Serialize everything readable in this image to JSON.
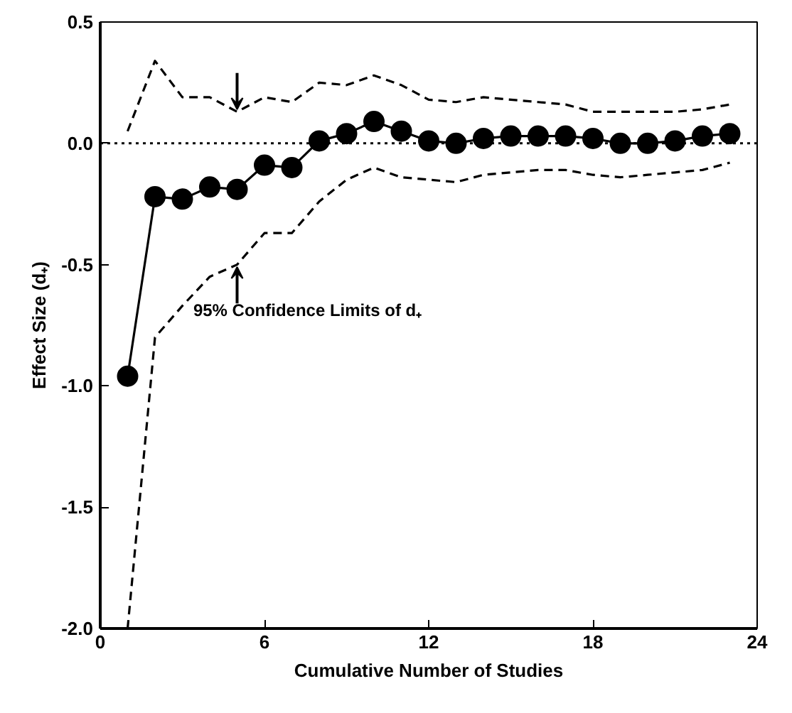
{
  "chart_data": {
    "type": "line",
    "xlabel": "Cumulative Number of Studies",
    "ylabel": "Effect Size (d₊)",
    "x": [
      1,
      2,
      3,
      4,
      5,
      6,
      7,
      8,
      9,
      10,
      11,
      12,
      13,
      14,
      15,
      16,
      17,
      18,
      19,
      20,
      21,
      22,
      23
    ],
    "series": [
      {
        "color": "#000000",
        "marker": "circle",
        "line_style": "solid",
        "values": [
          -0.96,
          -0.22,
          -0.23,
          -0.18,
          -0.19,
          -0.09,
          -0.1,
          0.01,
          0.04,
          0.09,
          0.05,
          0.01,
          0.0,
          0.02,
          0.03,
          0.03,
          0.03,
          0.02,
          0.0,
          0.0,
          0.01,
          0.03,
          0.04
        ]
      },
      {
        "color": "#000000",
        "marker": "none",
        "line_style": "dashed",
        "values": [
          0.05,
          0.34,
          0.19,
          0.19,
          0.13,
          0.19,
          0.17,
          0.25,
          0.24,
          0.28,
          0.24,
          0.18,
          0.17,
          0.19,
          0.18,
          0.17,
          0.16,
          0.13,
          0.13,
          0.13,
          0.13,
          0.14,
          0.16
        ]
      },
      {
        "color": "#000000",
        "marker": "none",
        "line_style": "dashed",
        "values": [
          -2.0,
          -0.8,
          -0.67,
          -0.55,
          -0.5,
          -0.37,
          -0.37,
          -0.24,
          -0.15,
          -0.1,
          -0.14,
          -0.15,
          -0.16,
          -0.13,
          -0.12,
          -0.11,
          -0.11,
          -0.13,
          -0.14,
          -0.13,
          -0.12,
          -0.11,
          -0.08
        ]
      }
    ],
    "xlim": [
      0,
      24
    ],
    "xticks": [
      0,
      6,
      12,
      18,
      24
    ],
    "ylim": [
      -2.0,
      0.5
    ],
    "yticks": [
      {
        "value": -2.0,
        "label": "-2.0"
      },
      {
        "value": -1.5,
        "label": "-1.5"
      },
      {
        "value": -1.0,
        "label": "-1.0"
      },
      {
        "value": -0.5,
        "label": "-0.5"
      },
      {
        "value": 0.0,
        "label": "0.0"
      },
      {
        "value": 0.5,
        "label": "0.5"
      }
    ],
    "ref_lines": [
      {
        "axis": "y",
        "value": 0,
        "label": null,
        "color": "#000000",
        "line_style": "dotted"
      }
    ],
    "annotations": [
      {
        "text": "95% Confidence Limits of d₊",
        "x": 5,
        "y": -0.5
      }
    ],
    "grid": false
  }
}
